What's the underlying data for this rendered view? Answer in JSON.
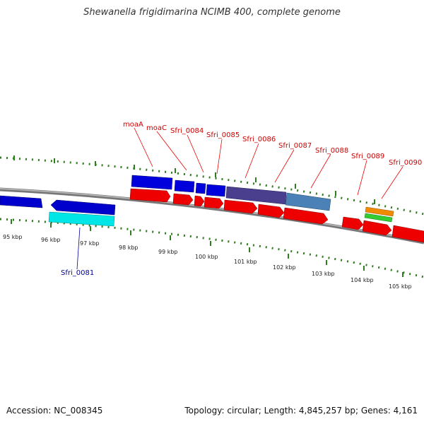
{
  "title": "Shewanella frigidimarina NCIMB 400, complete genome",
  "footer": {
    "accession": "Accession: NC_008345",
    "topology": "Topology: circular; Length: 4,845,257 bp; Genes: 4,161"
  },
  "colors": {
    "backbone": "#8a8a8a",
    "tick": "#2e7d1e",
    "label_forward": "#cc0000",
    "label_reverse": "#000099",
    "gene_forward_blue": "#0000dd",
    "gene_reverse_blue": "#0000cc",
    "cds_red": "#ee0000",
    "cyan": "#00e5e5",
    "purple": "#4a3f8f",
    "steel": "#4a82b8",
    "orange": "#f08a00",
    "green": "#33cc33"
  },
  "scale_labels": [
    "95 kbp",
    "96 kbp",
    "97 kbp",
    "98 kbp",
    "99 kbp",
    "100 kbp",
    "101 kbp",
    "102 kbp",
    "103 kbp",
    "104 kbp",
    "105 kbp"
  ],
  "gene_labels_top": [
    "moaA",
    "moaC",
    "Sfri_0084",
    "Sfri_0085",
    "Sfri_0086",
    "Sfri_0087",
    "Sfri_0088",
    "Sfri_0089",
    "Sfri_0090"
  ],
  "gene_labels_bottom": [
    "Sfri_0081"
  ]
}
